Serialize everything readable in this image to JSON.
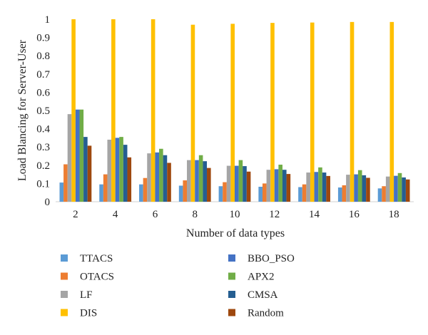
{
  "chart_data": {
    "type": "bar",
    "title": "",
    "xlabel": "Number of data types",
    "ylabel": "Load Blancing for Server-User",
    "ylim": [
      0,
      1
    ],
    "yticks": [
      "0",
      "0.1",
      "0.2",
      "0.3",
      "0.4",
      "0.5",
      "0.6",
      "0.7",
      "0.8",
      "0.9",
      "1"
    ],
    "grid": false,
    "legend_position": "bottom",
    "categories": [
      "2",
      "4",
      "6",
      "8",
      "10",
      "12",
      "14",
      "16",
      "18"
    ],
    "series": [
      {
        "name": "TTACS",
        "color": "#5b9bd5",
        "values": [
          0.105,
          0.095,
          0.095,
          0.088,
          0.085,
          0.082,
          0.08,
          0.078,
          0.073
        ]
      },
      {
        "name": "OTACS",
        "color": "#ed7d31",
        "values": [
          0.205,
          0.15,
          0.13,
          0.117,
          0.107,
          0.1,
          0.095,
          0.09,
          0.085
        ]
      },
      {
        "name": "LF",
        "color": "#a5a5a5",
        "values": [
          0.48,
          0.34,
          0.265,
          0.228,
          0.197,
          0.175,
          0.16,
          0.148,
          0.138
        ]
      },
      {
        "name": "DIS",
        "color": "#ffc000",
        "values": [
          1.0,
          1.0,
          1.0,
          0.97,
          0.975,
          0.98,
          0.982,
          0.985,
          0.985
        ]
      },
      {
        "name": "BBO_PSO",
        "color": "#4472c4",
        "values": [
          0.505,
          0.35,
          0.27,
          0.228,
          0.197,
          0.178,
          0.163,
          0.15,
          0.142
        ]
      },
      {
        "name": "APX2",
        "color": "#70ad47",
        "values": [
          0.505,
          0.355,
          0.29,
          0.255,
          0.228,
          0.203,
          0.188,
          0.173,
          0.157
        ]
      },
      {
        "name": "CMSA",
        "color": "#255e91",
        "values": [
          0.355,
          0.312,
          0.255,
          0.222,
          0.195,
          0.175,
          0.16,
          0.145,
          0.133
        ]
      },
      {
        "name": "Random",
        "color": "#9e480e",
        "values": [
          0.307,
          0.243,
          0.213,
          0.185,
          0.165,
          0.152,
          0.141,
          0.131,
          0.122
        ]
      }
    ]
  }
}
